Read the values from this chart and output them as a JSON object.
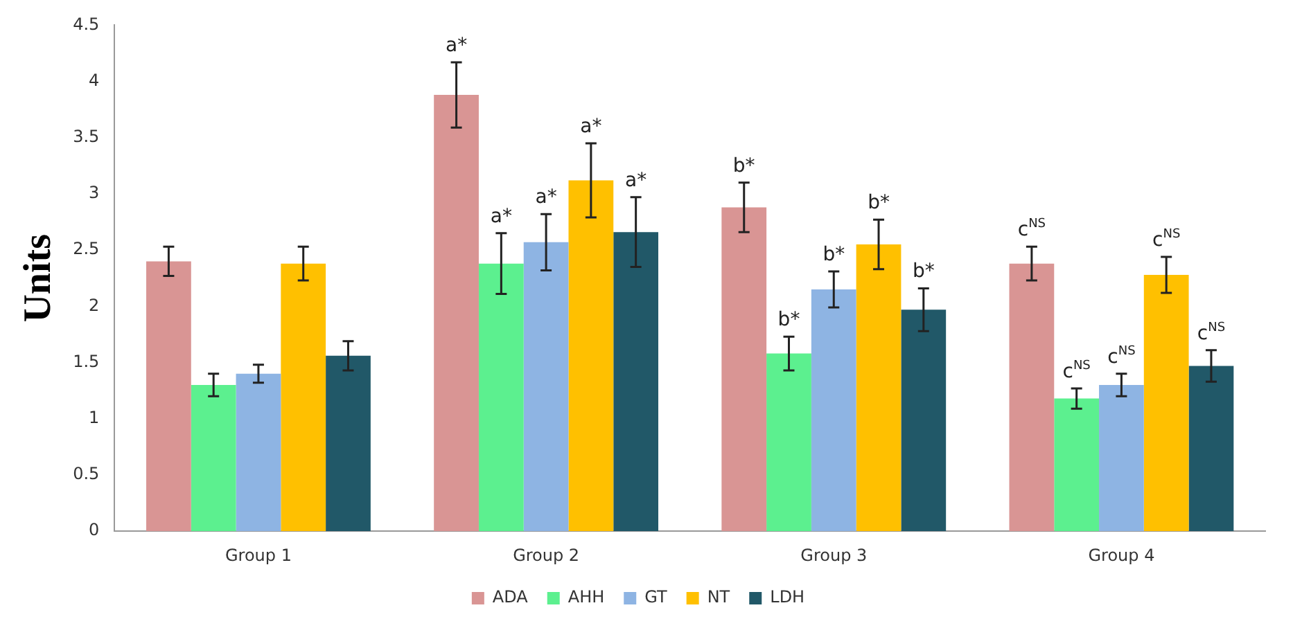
{
  "chart_data": {
    "type": "bar",
    "ylabel": "Units",
    "categories": [
      "Group 1",
      "Group 2",
      "Group 3",
      "Group 4"
    ],
    "series": [
      {
        "name": "ADA",
        "color": "#d99594",
        "values": [
          2.4,
          3.88,
          2.88,
          2.38
        ],
        "errors": [
          0.13,
          0.29,
          0.22,
          0.15
        ]
      },
      {
        "name": "AHH",
        "color": "#5cf08f",
        "values": [
          1.3,
          2.38,
          1.58,
          1.18
        ],
        "errors": [
          0.1,
          0.27,
          0.15,
          0.09
        ]
      },
      {
        "name": "GT",
        "color": "#8eb4e3",
        "values": [
          1.4,
          2.57,
          2.15,
          1.3
        ],
        "errors": [
          0.08,
          0.25,
          0.16,
          0.1
        ]
      },
      {
        "name": "NT",
        "color": "#ffc000",
        "values": [
          2.38,
          3.12,
          2.55,
          2.28
        ],
        "errors": [
          0.15,
          0.33,
          0.22,
          0.16
        ]
      },
      {
        "name": "LDH",
        "color": "#215868",
        "values": [
          1.56,
          2.66,
          1.97,
          1.47
        ],
        "errors": [
          0.13,
          0.31,
          0.19,
          0.14
        ]
      }
    ],
    "ylim": [
      0,
      4.5
    ],
    "yticks": [
      0,
      0.5,
      1,
      1.5,
      2,
      2.5,
      3,
      3.5,
      4,
      4.5
    ],
    "grid": false,
    "legend": "bottom",
    "annotations": [
      "a*",
      "a*",
      "a*",
      "a*",
      "a*",
      "b*",
      "b*",
      "b*",
      "b*",
      "b*",
      "c$^{NS}$",
      "c$^{NS}$",
      "c$^{NS}$",
      "c$^{NS}$",
      "c$^{NS}$"
    ]
  }
}
